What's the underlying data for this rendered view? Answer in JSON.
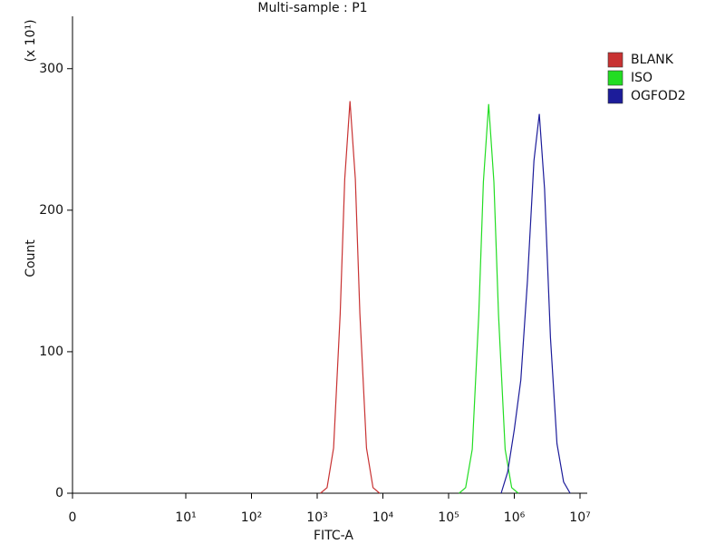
{
  "chart_data": {
    "type": "line",
    "title": "Multi-sample : P1",
    "x_label": "FITC-A",
    "y_label": "Count",
    "y_unit_label": "(x 10¹)",
    "xscale": "log",
    "xlim": [
      0,
      10000000
    ],
    "ylim": [
      0,
      337
    ],
    "xticks": [
      {
        "value": 0,
        "label": "0"
      },
      {
        "value": 10,
        "label": "10¹"
      },
      {
        "value": 100,
        "label": "10²"
      },
      {
        "value": 1000,
        "label": "10³"
      },
      {
        "value": 10000,
        "label": "10⁴"
      },
      {
        "value": 100000,
        "label": "10⁵"
      },
      {
        "value": 1000000,
        "label": "10⁶"
      },
      {
        "value": 10000000,
        "label": "10⁷"
      }
    ],
    "yticks": [
      0,
      100,
      200,
      300
    ],
    "legend": "top-right",
    "series": [
      {
        "name": "BLANK",
        "color": "#c83232",
        "x": [
          1122,
          1413,
          1778,
          2239,
          2630,
          3162,
          3802,
          4467,
          5623,
          7079,
          8913
        ],
        "values": [
          0,
          4,
          32,
          127,
          222,
          277,
          222,
          127,
          32,
          4,
          0
        ]
      },
      {
        "name": "ISO",
        "color": "#22dd22",
        "x": [
          144544,
          181970,
          229087,
          288403,
          338844,
          407380,
          489779,
          575440,
          724436,
          912011,
          1148154
        ],
        "values": [
          0,
          4,
          31,
          126,
          220,
          275,
          220,
          126,
          31,
          4,
          0
        ]
      },
      {
        "name": "OGFOD2",
        "color": "#1c1c9a",
        "x": [
          630957,
          794328,
          1000000,
          1258925,
          1584893,
          1995262,
          2398833,
          2884032,
          3548134,
          4466836,
          5623413,
          7079458
        ],
        "values": [
          0,
          15,
          45,
          80,
          150,
          235,
          268,
          215,
          110,
          35,
          8,
          0
        ]
      }
    ]
  }
}
